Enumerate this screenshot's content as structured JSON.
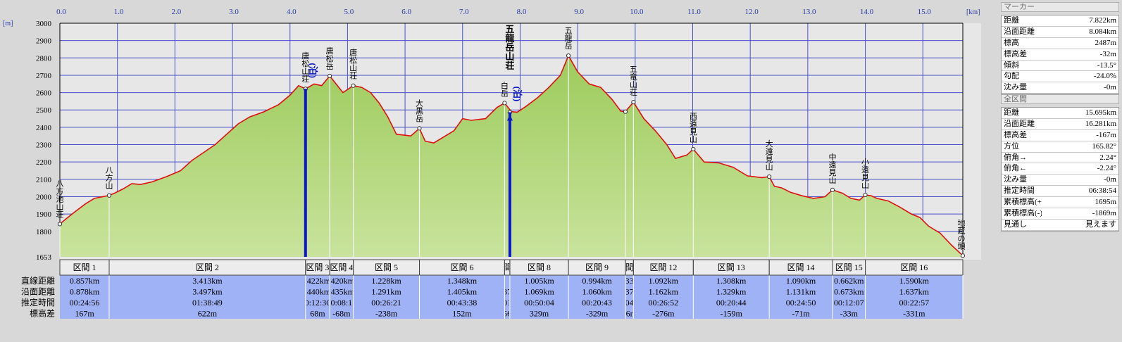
{
  "chart_data": {
    "type": "area",
    "x_unit": "[km]",
    "y_unit": "[m]",
    "xlim": [
      0,
      15.695
    ],
    "ylim": [
      1653,
      3000
    ],
    "x_ticks": [
      0,
      1,
      2,
      3,
      4,
      5,
      6,
      7,
      8,
      9,
      10,
      11,
      12,
      13,
      14,
      15
    ],
    "x_tick_labels": [
      "0.0",
      "1.0",
      "2.0",
      "3.0",
      "4.0",
      "5.0",
      "6.0",
      "7.0",
      "8.0",
      "9.0",
      "10.0",
      "11.0",
      "12.0",
      "13.0",
      "14.0",
      "15.0"
    ],
    "y_ticks": [
      1653,
      1800,
      1900,
      2000,
      2100,
      2200,
      2300,
      2400,
      2500,
      2600,
      2700,
      2800,
      2900,
      3000
    ],
    "y_tick_labels": [
      "1653",
      "1800",
      "1900",
      "2000",
      "2100",
      "2200",
      "2300",
      "2400",
      "2500",
      "2600",
      "2700",
      "2800",
      "2900",
      "3000"
    ],
    "series": [
      {
        "x": [
          0,
          0.1,
          0.25,
          0.45,
          0.6,
          0.857,
          0.95,
          1.1,
          1.25,
          1.4,
          1.6,
          1.85,
          2.1,
          2.3,
          2.5,
          2.7,
          2.9,
          3.1,
          3.3,
          3.55,
          3.8,
          4.0,
          4.15,
          4.27,
          4.42,
          4.55,
          4.69,
          4.8,
          4.92,
          5.1,
          5.25,
          5.4,
          5.55,
          5.7,
          5.85,
          6.1,
          6.25,
          6.35,
          6.5,
          6.65,
          6.85,
          7.0,
          7.15,
          7.4,
          7.6,
          7.73,
          7.85,
          7.95,
          8.1,
          8.3,
          8.5,
          8.7,
          8.84,
          9.0,
          9.2,
          9.4,
          9.6,
          9.75,
          9.83,
          9.97,
          10.15,
          10.35,
          10.55,
          10.7,
          10.9,
          11.01,
          11.2,
          11.45,
          11.7,
          11.95,
          12.2,
          12.33,
          12.42,
          12.55,
          12.7,
          12.9,
          13.1,
          13.3,
          13.43,
          13.6,
          13.75,
          13.9,
          14.0,
          14.1,
          14.2,
          14.4,
          14.6,
          14.8,
          14.95,
          15.1,
          15.3,
          15.5,
          15.695
        ],
        "y": [
          1842,
          1870,
          1910,
          1960,
          1990,
          2007,
          2020,
          2045,
          2075,
          2070,
          2085,
          2115,
          2150,
          2210,
          2255,
          2300,
          2360,
          2420,
          2460,
          2490,
          2530,
          2585,
          2640,
          2622,
          2650,
          2640,
          2696,
          2650,
          2600,
          2640,
          2630,
          2600,
          2540,
          2460,
          2360,
          2350,
          2394,
          2320,
          2310,
          2340,
          2380,
          2450,
          2440,
          2450,
          2515,
          2540,
          2490,
          2487,
          2520,
          2570,
          2630,
          2700,
          2813,
          2720,
          2650,
          2630,
          2560,
          2493,
          2490,
          2545,
          2450,
          2380,
          2300,
          2220,
          2240,
          2274,
          2200,
          2195,
          2170,
          2120,
          2110,
          2115,
          2060,
          2050,
          2025,
          2005,
          1990,
          2000,
          2039,
          2020,
          1990,
          1980,
          2010,
          2005,
          1990,
          1975,
          1940,
          1900,
          1880,
          1830,
          1790,
          1720,
          1660
        ]
      }
    ],
    "peaks": [
      {
        "x": 0,
        "y": 1842,
        "label": "八方池山荘"
      },
      {
        "x": 0.857,
        "y": 2007,
        "label": "八方山"
      },
      {
        "x": 4.27,
        "y": 2622,
        "label": "唐松山荘"
      },
      {
        "x": 4.69,
        "y": 2696,
        "label": "唐松岳"
      },
      {
        "x": 5.1,
        "y": 2640,
        "label": "唐松山荘"
      },
      {
        "x": 6.25,
        "y": 2394,
        "label": "大黒岳"
      },
      {
        "x": 7.73,
        "y": 2540,
        "label": "白岳"
      },
      {
        "x": 7.822,
        "y": 2487,
        "label": "五龍岳山荘"
      },
      {
        "x": 8.84,
        "y": 2813,
        "label": "五龍岳"
      },
      {
        "x": 9.83,
        "y": 2490,
        "label": ""
      },
      {
        "x": 9.97,
        "y": 2545,
        "label": "五竜山荘"
      },
      {
        "x": 11.01,
        "y": 2274,
        "label": "西遠見山"
      },
      {
        "x": 12.33,
        "y": 2115,
        "label": "大遠見山"
      },
      {
        "x": 13.43,
        "y": 2039,
        "label": "中遠見山"
      },
      {
        "x": 14.0,
        "y": 2010,
        "label": "小遠見山"
      },
      {
        "x": 15.695,
        "y": 1660,
        "label": "地蔵の頭"
      }
    ],
    "stay_markers": [
      {
        "x": 4.27,
        "label": "(泊)"
      },
      {
        "x": 7.822,
        "label": "(泊)"
      }
    ],
    "cursor_x": 7.822,
    "grid": true
  },
  "sections": {
    "row_labels": [
      "直線距離",
      "沿面距離",
      "推定時間",
      "標高差"
    ],
    "items": [
      {
        "x0": 0,
        "x1": 0.857,
        "name": "区間 1",
        "direct": "0.857km",
        "surface": "0.878km",
        "time": "00:24:56",
        "elev": "167m"
      },
      {
        "x0": 0.857,
        "x1": 4.27,
        "name": "区間 2",
        "direct": "3.413km",
        "surface": "3.497km",
        "time": "01:38:49",
        "elev": "622m"
      },
      {
        "x0": 4.27,
        "x1": 4.69,
        "name": "区間 3",
        "direct": ".422km",
        "surface": ".440km",
        "time": "0:12:30",
        "elev": "68m"
      },
      {
        "x0": 4.69,
        "x1": 5.1,
        "name": "区間 4",
        "direct": ".420km",
        "surface": ".435km",
        "time": "0:08:1",
        "elev": "-68m"
      },
      {
        "x0": 5.1,
        "x1": 6.25,
        "name": "区間 5",
        "direct": "1.228km",
        "surface": "1.291km",
        "time": "00:26:21",
        "elev": "-238m"
      },
      {
        "x0": 6.25,
        "x1": 7.73,
        "name": "区間 6",
        "direct": "1.348km",
        "surface": "1.405km",
        "time": "00:43:38",
        "elev": "152m"
      },
      {
        "x0": 7.73,
        "x1": 7.822,
        "name": "間",
        "direct": "",
        "surface": "37",
        "time": "01",
        "elev": "56"
      },
      {
        "x0": 7.822,
        "x1": 8.84,
        "name": "区間 8",
        "direct": "1.005km",
        "surface": "1.069km",
        "time": "00:50:04",
        "elev": "329m"
      },
      {
        "x0": 8.84,
        "x1": 9.83,
        "name": "区間 9",
        "direct": "0.994km",
        "surface": "1.060km",
        "time": "00:20:43",
        "elev": "-329m"
      },
      {
        "x0": 9.83,
        "x1": 9.97,
        "name": "間",
        "direct": "33",
        "surface": "37",
        "time": "04",
        "elev": "6r"
      },
      {
        "x0": 9.97,
        "x1": 11.01,
        "name": "区間 12",
        "direct": "1.092km",
        "surface": "1.162km",
        "time": "00:26:52",
        "elev": "-276m"
      },
      {
        "x0": 11.01,
        "x1": 12.33,
        "name": "区間 13",
        "direct": "1.308km",
        "surface": "1.329km",
        "time": "00:20:44",
        "elev": "-159m"
      },
      {
        "x0": 12.33,
        "x1": 13.43,
        "name": "区間 14",
        "direct": "1.090km",
        "surface": "1.131km",
        "time": "00:24:50",
        "elev": "-71m"
      },
      {
        "x0": 13.43,
        "x1": 14.0,
        "name": "区間 15",
        "direct": "0.662km",
        "surface": "0.673km",
        "time": "00:12:07",
        "elev": "-33m"
      },
      {
        "x0": 14.0,
        "x1": 15.695,
        "name": "区間 16",
        "direct": "1.590km",
        "surface": "1.637km",
        "time": "00:22:57",
        "elev": "-331m"
      }
    ]
  },
  "marker_panel": {
    "title": "マーカー",
    "rows": [
      {
        "k": "距離",
        "v": "7.822km"
      },
      {
        "k": "沿面距離",
        "v": "8.084km"
      },
      {
        "k": "標高",
        "v": "2487m"
      },
      {
        "k": "標高差",
        "v": "-32m"
      },
      {
        "k": "傾斜",
        "v": "-13.5°"
      },
      {
        "k": "勾配",
        "v": "-24.0%"
      },
      {
        "k": "沈み量",
        "v": "-0m"
      }
    ]
  },
  "total_panel": {
    "title": "全区間",
    "rows": [
      {
        "k": "距離",
        "v": "15.695km"
      },
      {
        "k": "沿面距離",
        "v": "16.281km"
      },
      {
        "k": "標高差",
        "v": "-167m"
      },
      {
        "k": "方位",
        "v": "165.82°"
      },
      {
        "k": "俯角→",
        "v": "2.24°"
      },
      {
        "k": "俯角←",
        "v": "-2.24°"
      },
      {
        "k": "沈み量",
        "v": "-0m"
      },
      {
        "k": "推定時間",
        "v": "06:38:54"
      },
      {
        "k": "累積標高(+)",
        "v": "1695m"
      },
      {
        "k": "累積標高(-)",
        "v": "-1869m"
      },
      {
        "k": "見通し",
        "v": "見えます"
      }
    ]
  },
  "colors": {
    "fill_top": "#9dcb5c",
    "fill_bottom": "#c9e39c",
    "line": "#e01010",
    "grid": "#4a50c8",
    "plot_bg": "#e7e7e7",
    "table_bg": "#9fb2f6",
    "marker_line": "#0a18c8"
  }
}
